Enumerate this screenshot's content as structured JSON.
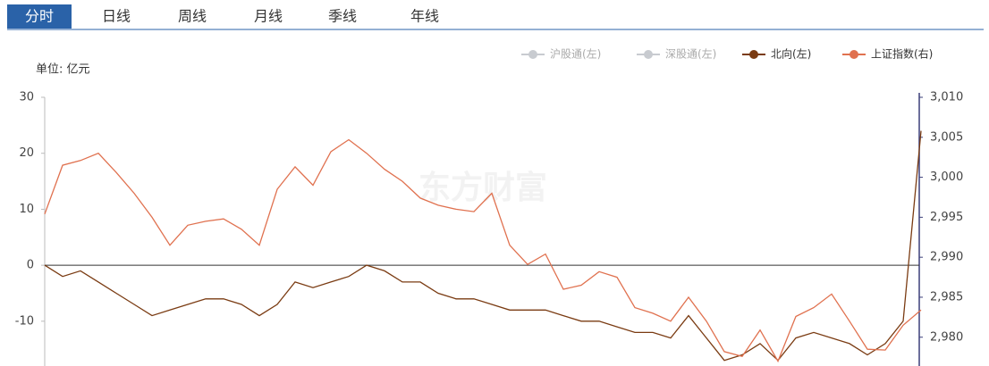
{
  "tabs": [
    "分时",
    "日线",
    "周线",
    "月线",
    "季线",
    "年线"
  ],
  "active_tab": 0,
  "unit_label": "单位: 亿元",
  "watermark": "东方财富",
  "chart_data": {
    "type": "line",
    "legend_position": "top-right",
    "grid": false,
    "ylim": [
      -18,
      30
    ],
    "yticks": [
      30,
      20,
      10,
      0,
      -10
    ],
    "y2lim": [
      2976.4,
      3010
    ],
    "y2ticks": [
      {
        "value": 3010,
        "label": "3,010"
      },
      {
        "value": 3005,
        "label": "3,005"
      },
      {
        "value": 3000,
        "label": "3,000"
      },
      {
        "value": 2995,
        "label": "2,995"
      },
      {
        "value": 2990,
        "label": "2,990"
      },
      {
        "value": 2985,
        "label": "2,985"
      },
      {
        "value": 2980,
        "label": "2,980"
      }
    ],
    "series": [
      {
        "name": "沪股通(左)",
        "color": "#c8cbd0",
        "hidden": true,
        "values": []
      },
      {
        "name": "深股通(左)",
        "color": "#c8cbd0",
        "hidden": true,
        "values": []
      },
      {
        "name": "北向(左)",
        "color": "#7a3b12",
        "values": [
          0,
          -2,
          -1,
          -3,
          -5,
          -7,
          -9,
          -8,
          -7,
          -6,
          -6,
          -7,
          -9,
          -7,
          -3,
          -4,
          -3,
          -2,
          0,
          -1,
          -3,
          -3,
          -5,
          -6,
          -6,
          -7,
          -8,
          -8,
          -8,
          -9,
          -10,
          -10,
          -11,
          -12,
          -12,
          -13,
          -9,
          -13,
          -17,
          -16,
          -14,
          -17,
          -13,
          -12,
          -13,
          -14,
          -16,
          -14,
          -10,
          24
        ]
      },
      {
        "name": "上证指数(右)",
        "color": "#e0714f",
        "axis": "y2",
        "values": [
          2995.4,
          3001.5,
          3002.1,
          3003,
          3000.6,
          2998,
          2995,
          2991.5,
          2994,
          2994.5,
          2994.8,
          2993.5,
          2991.5,
          2998.5,
          3001.3,
          2999,
          3003.2,
          3004.7,
          3003,
          3001,
          2999.5,
          2997.4,
          2996.5,
          2996,
          2995.7,
          2998,
          2991.5,
          2989.1,
          2990.4,
          2986,
          2986.5,
          2988.2,
          2987.5,
          2983.7,
          2983,
          2982,
          2985,
          2982,
          2978.2,
          2977.6,
          2980.9,
          2977,
          2982.6,
          2983.7,
          2985.4,
          2982,
          2978.5,
          2978.4,
          2981.5,
          2983.4
        ]
      }
    ]
  }
}
